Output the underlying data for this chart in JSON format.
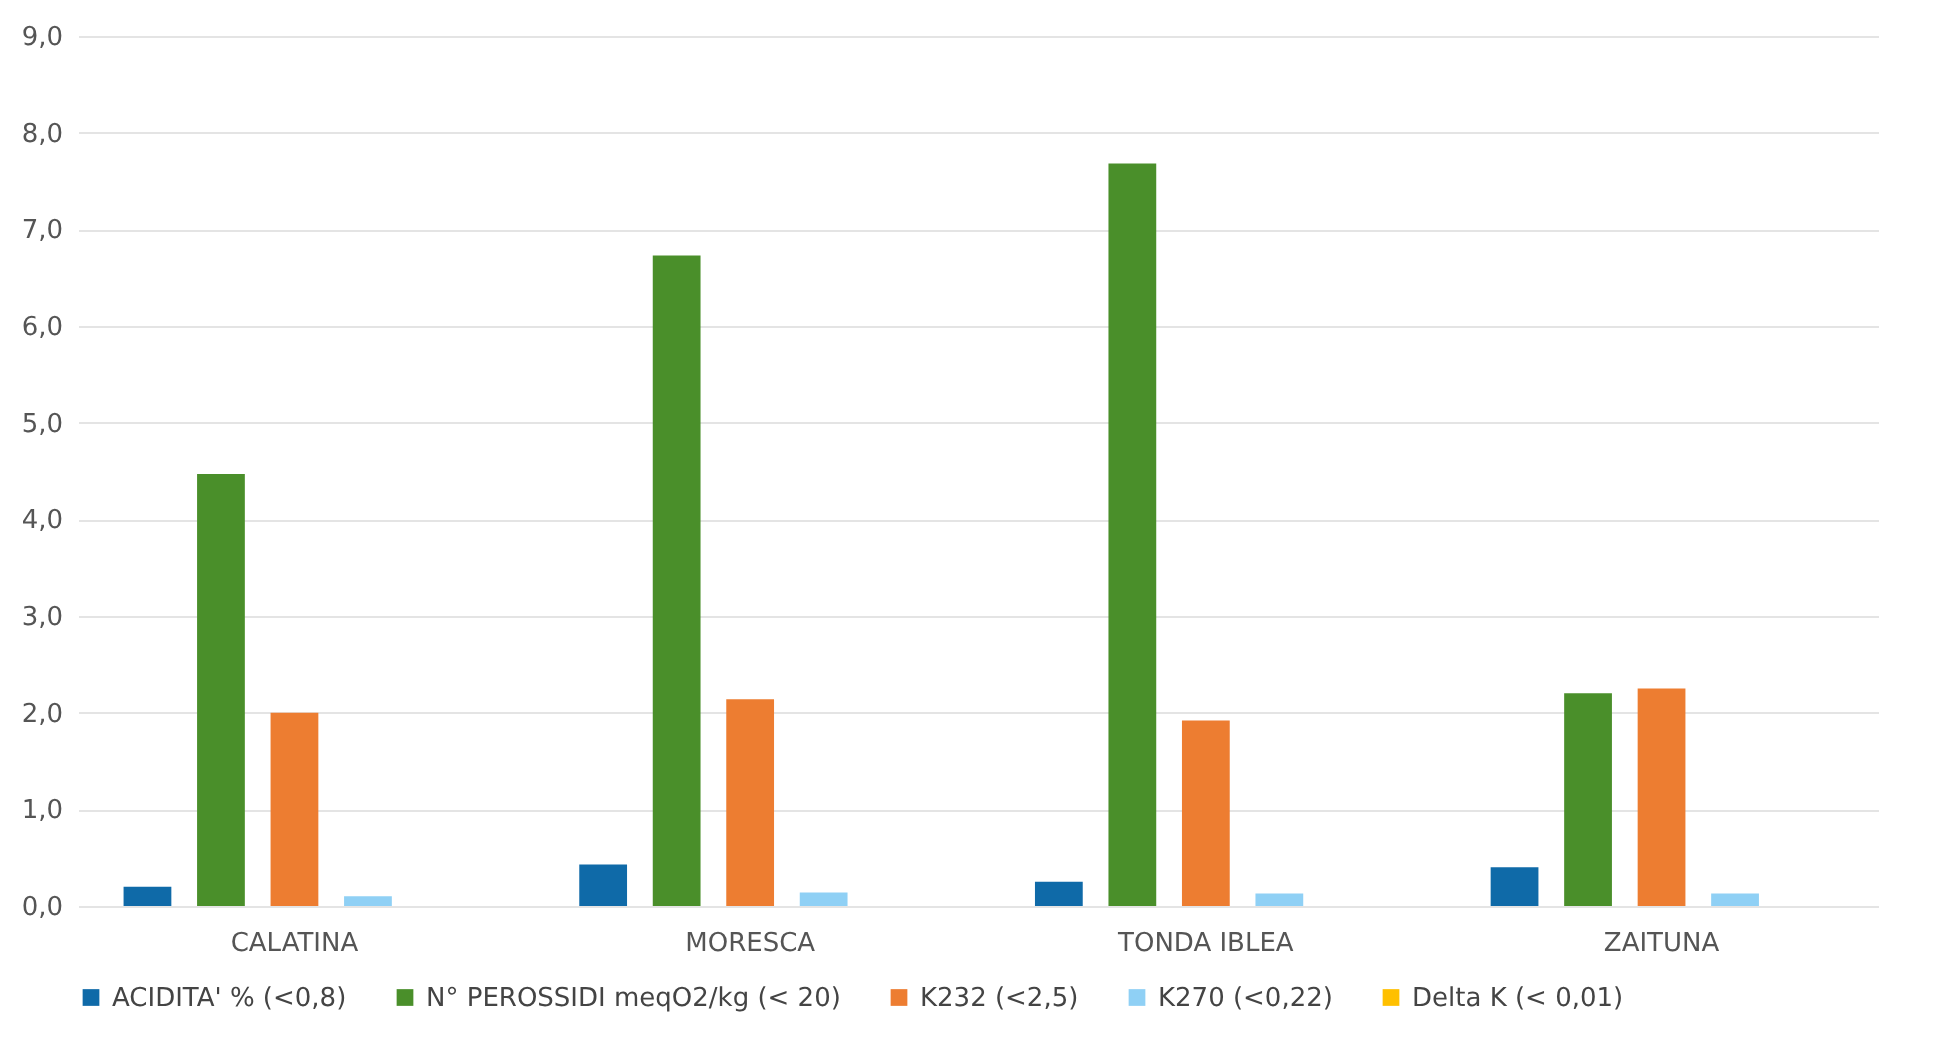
{
  "chart_data": {
    "type": "bar",
    "categories": [
      "CALATINA",
      "MORESCA",
      "TONDA IBLEA",
      "ZAITUNA"
    ],
    "series": [
      {
        "name": "ACIDITA' % (<0,8)",
        "color": "#0f6aa8",
        "values": [
          0.2,
          0.43,
          0.25,
          0.4
        ]
      },
      {
        "name": "N° PEROSSIDI meqO2/kg (< 20)",
        "color": "#4a8f2a",
        "values": [
          4.47,
          6.73,
          7.68,
          2.2
        ]
      },
      {
        "name": "K232 (<2,5)",
        "color": "#ed7d31",
        "values": [
          2.0,
          2.14,
          1.92,
          2.25
        ]
      },
      {
        "name": "K270 (<0,22)",
        "color": "#8fd0f5",
        "values": [
          0.1,
          0.14,
          0.13,
          0.13
        ]
      },
      {
        "name": "Delta K (< 0,01)",
        "color": "#ffc000",
        "values": [
          0,
          0,
          0,
          0
        ]
      }
    ],
    "ylim": [
      0,
      9
    ],
    "yticks": [
      {
        "value": 0,
        "label": "0,0"
      },
      {
        "value": 1,
        "label": "1,0"
      },
      {
        "value": 2,
        "label": "2,0"
      },
      {
        "value": 3,
        "label": "3,0"
      },
      {
        "value": 4,
        "label": "4,0"
      },
      {
        "value": 5,
        "label": "5,0"
      },
      {
        "value": 6,
        "label": "6,0"
      },
      {
        "value": 7,
        "label": "7,0"
      },
      {
        "value": 8,
        "label": "8,0"
      },
      {
        "value": 9,
        "label": "9,0"
      }
    ],
    "grid": "y",
    "legend": "bottom"
  }
}
